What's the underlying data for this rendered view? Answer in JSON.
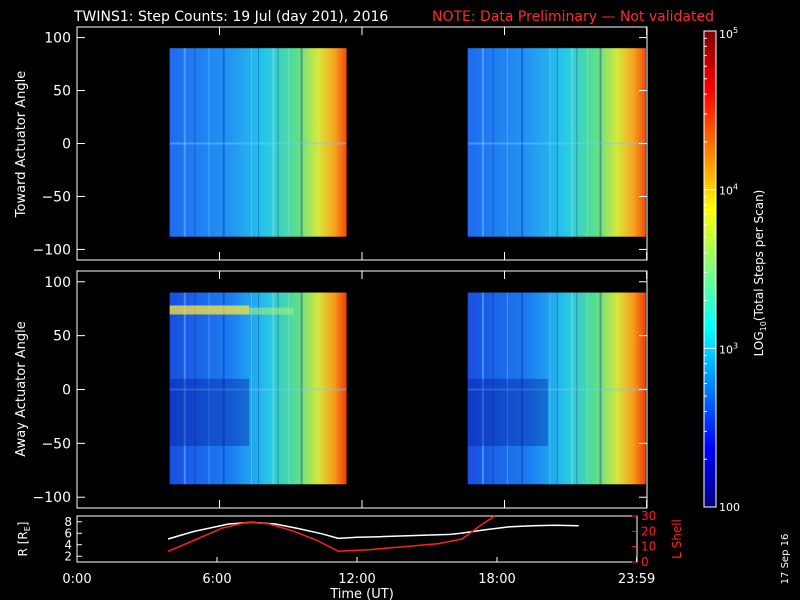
{
  "header": {
    "title": "TWINS1: Step Counts: 19 Jul (day 201), 2016",
    "note": "NOTE: Data Preliminary — Not validated"
  },
  "stamp": "17 Sep 16",
  "colors": {
    "background": "#000000",
    "axes": "#ffffff",
    "note_text": "#ff2a2a",
    "l_shell": "#ff2020",
    "r_line": "#ffffff"
  },
  "chart_data": [
    {
      "type": "heatmap",
      "id": "toward",
      "title": "",
      "xlabel": "",
      "ylabel": "Toward Actuator Angle",
      "xlim": [
        0,
        24
      ],
      "ylim": [
        -110,
        110
      ],
      "yticks": [
        100,
        50,
        0,
        -50,
        -100
      ],
      "y_tick_labels": [
        "100",
        "50",
        "0",
        "−50",
        "−100"
      ],
      "data_blocks": [
        {
          "x_start": 3.9,
          "x_end": 11.35,
          "y_min": -88,
          "y_max": 90
        },
        {
          "x_start": 16.45,
          "x_end": 23.95,
          "y_min": -88,
          "y_max": 90
        }
      ],
      "counts_profile_note": "counts rise from ~400 (blue) to ~50000 (orange/red) across each block, highest at block end"
    },
    {
      "type": "heatmap",
      "id": "away",
      "title": "",
      "xlabel": "",
      "ylabel": "Away Actuator Angle",
      "xlim": [
        0,
        24
      ],
      "ylim": [
        -110,
        110
      ],
      "yticks": [
        100,
        50,
        0,
        -50,
        -100
      ],
      "y_tick_labels": [
        "100",
        "50",
        "0",
        "−50",
        "−100"
      ],
      "data_blocks": [
        {
          "x_start": 3.9,
          "x_end": 11.35,
          "y_min": -88,
          "y_max": 90
        },
        {
          "x_start": 16.45,
          "x_end": 23.95,
          "y_min": -88,
          "y_max": 90
        }
      ]
    },
    {
      "type": "line",
      "id": "orbit",
      "xlabel": "Time (UT)",
      "ylabel": "R [RE]",
      "ylabel_right": "L Shell",
      "xlim": [
        0,
        24
      ],
      "x_ticks": [
        0,
        6,
        12,
        18,
        23.983
      ],
      "x_tick_labels": [
        "0:00",
        "6:00",
        "12:00",
        "18:00",
        "23:59"
      ],
      "ylim_left": [
        1,
        9
      ],
      "yticks_left": [
        2,
        4,
        6,
        8
      ],
      "ylim_right": [
        0,
        30
      ],
      "yticks_right": [
        0,
        10,
        20,
        30
      ],
      "series": [
        {
          "axis": "left",
          "x": [
            3.9,
            5.0,
            6.5,
            7.5,
            8.5,
            9.5,
            10.5,
            11.2,
            12.0,
            13.0,
            14.5,
            16.0,
            16.45
          ],
          "y": [
            5.0,
            6.3,
            7.6,
            7.9,
            7.6,
            6.8,
            5.9,
            5.1,
            5.3,
            5.4,
            5.6,
            5.8,
            6.0
          ]
        },
        {
          "axis": "left",
          "x": [
            16.45,
            17.5,
            18.5,
            19.5,
            20.5,
            21.5
          ],
          "y": [
            6.0,
            6.6,
            7.1,
            7.3,
            7.4,
            7.3
          ]
        },
        {
          "axis": "right",
          "x": [
            3.9,
            5.0,
            6.2,
            7.3,
            8.2,
            9.3,
            10.3,
            11.2,
            12.5,
            14.0,
            15.5,
            16.5,
            17.4,
            17.9
          ],
          "y": [
            7,
            14,
            22,
            26,
            25,
            20,
            14,
            7,
            8,
            10,
            12,
            15,
            25,
            30
          ]
        }
      ]
    },
    {
      "type": "colorbar",
      "id": "colorbar",
      "label": "LOG10(Total Steps per Scan)",
      "label_parts": [
        "LOG",
        "10",
        "(Total Steps per Scan)"
      ],
      "scale": "log",
      "range": [
        100,
        100000
      ],
      "ticks": [
        {
          "value": 100,
          "label": "100",
          "base": "",
          "exp": ""
        },
        {
          "value": 1000,
          "label": "10^3",
          "base": "10",
          "exp": "3"
        },
        {
          "value": 10000,
          "label": "10^4",
          "base": "10",
          "exp": "4"
        },
        {
          "value": 100000,
          "label": "10^5",
          "base": "10",
          "exp": "5"
        }
      ]
    }
  ]
}
